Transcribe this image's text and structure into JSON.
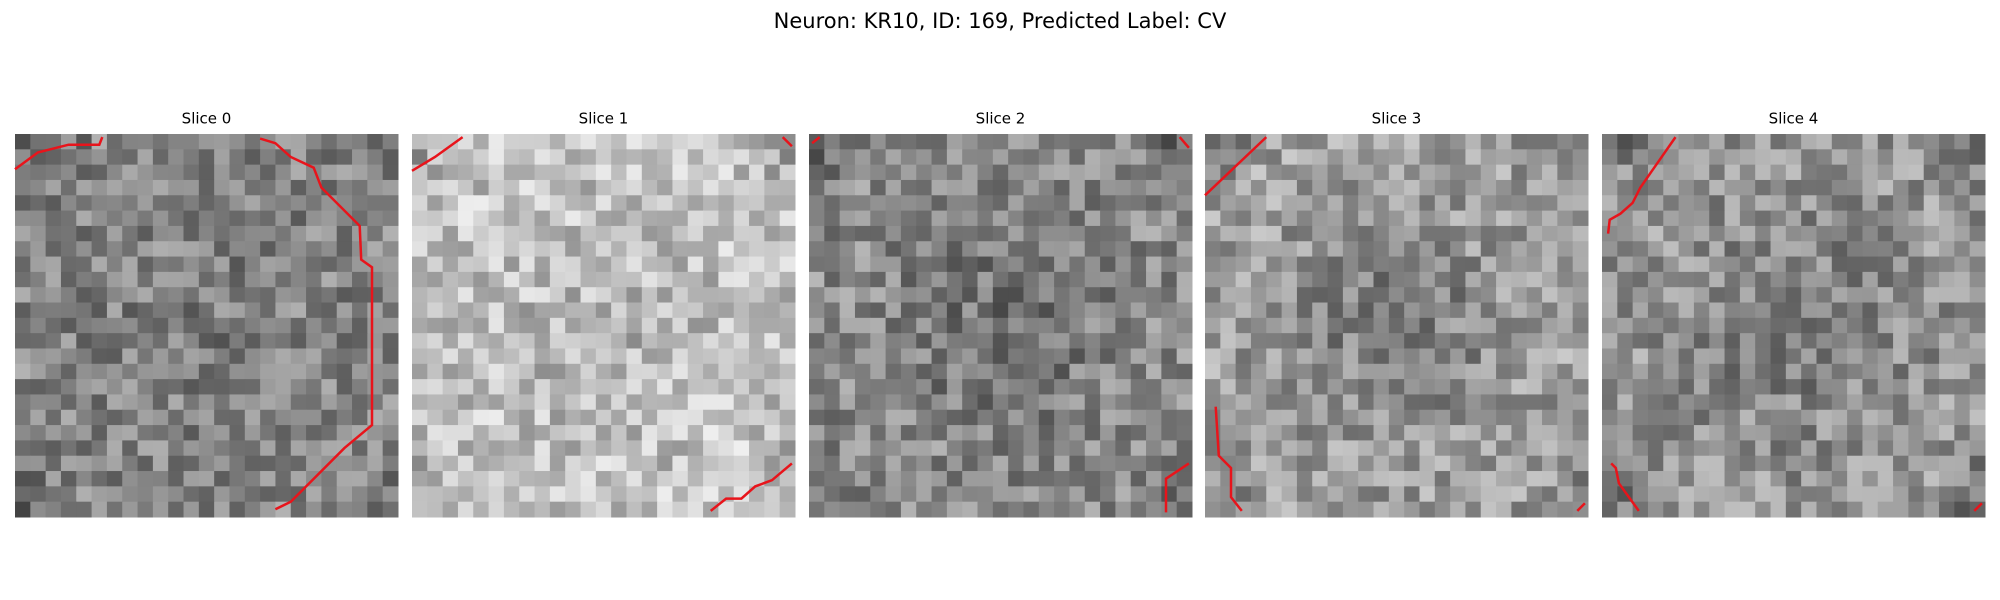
{
  "title": "Neuron: KR10, ID: 169, Predicted Label: CV",
  "panels": [
    {
      "title": "Slice 0"
    },
    {
      "title": "Slice 1"
    },
    {
      "title": "Slice 2"
    },
    {
      "title": "Slice 3"
    },
    {
      "title": "Slice 4"
    }
  ]
}
